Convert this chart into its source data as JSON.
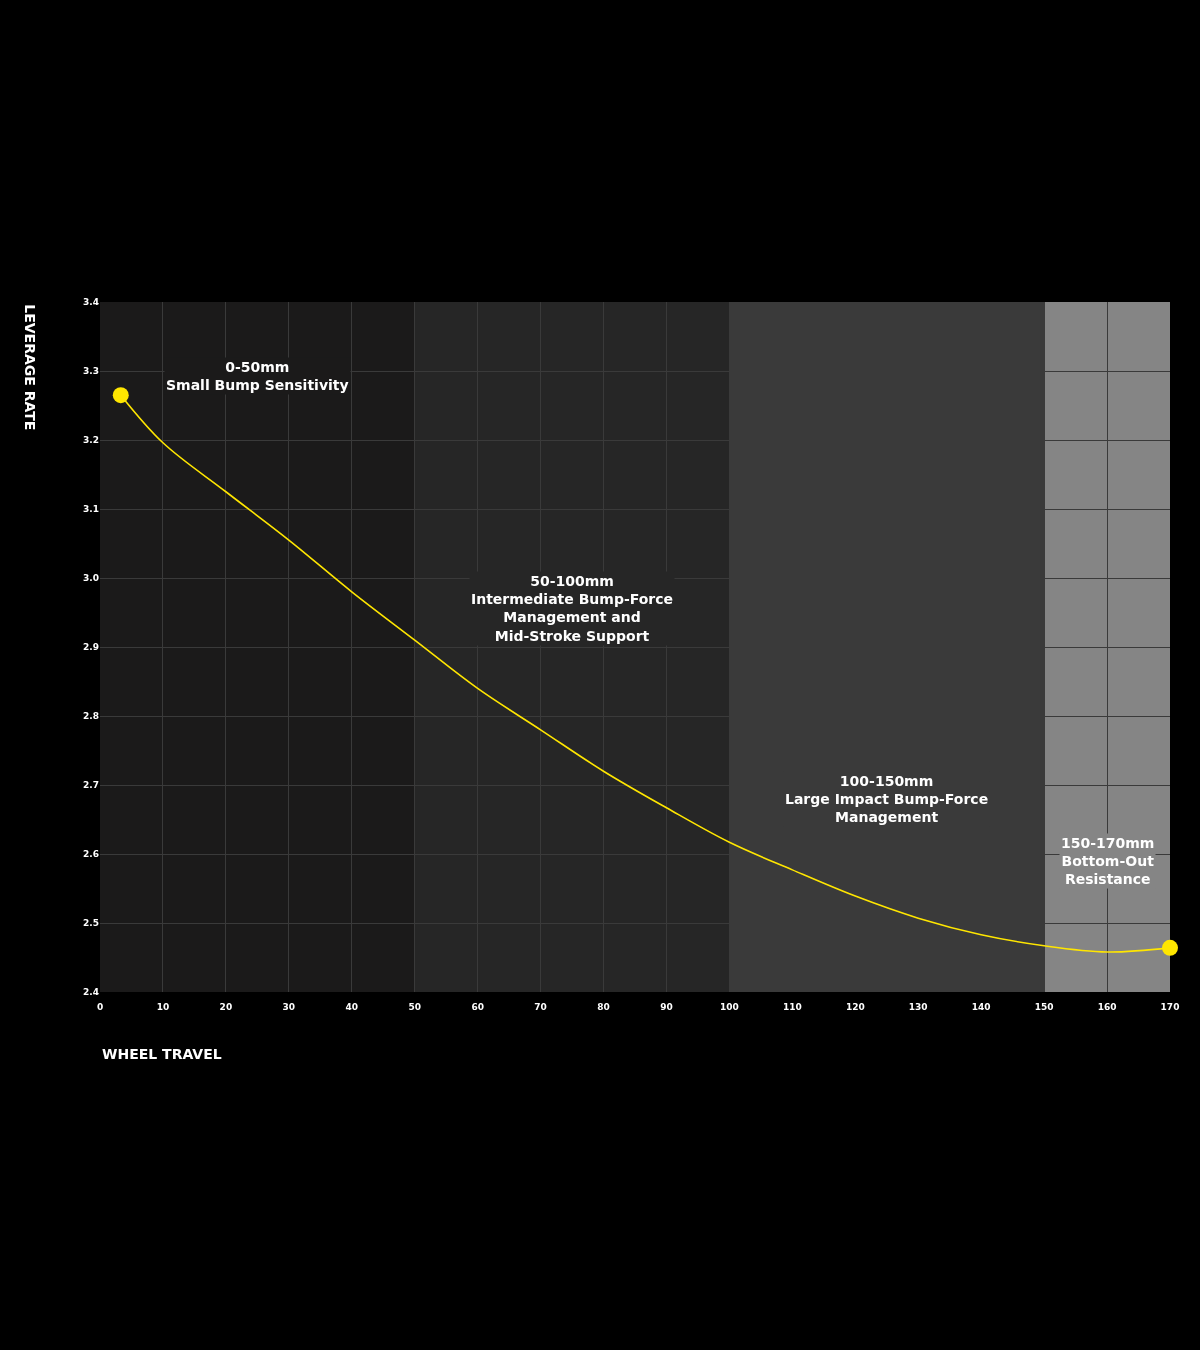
{
  "chart_data": {
    "type": "line",
    "xlabel": "WHEEL TRAVEL",
    "ylabel": "LEVERAGE RATE",
    "xlim": [
      0,
      170
    ],
    "xticks": [
      0,
      10,
      20,
      30,
      40,
      50,
      60,
      70,
      80,
      90,
      100,
      110,
      120,
      130,
      140,
      150,
      160,
      170
    ],
    "ylim": [
      2.4,
      3.4
    ],
    "yticks": [
      2.4,
      2.5,
      2.6,
      2.7,
      2.8,
      2.9,
      {
        "value": 3.0,
        "label": "3.0"
      },
      3.1,
      3.2,
      3.3,
      3.4
    ],
    "grid": true,
    "legend": false,
    "line_style": "solid",
    "series": [
      {
        "color": "#ffe600",
        "x": [
          3.3,
          10,
          20,
          30,
          40,
          50,
          60,
          70,
          80,
          90,
          100,
          110,
          120,
          130,
          140,
          150,
          160,
          170
        ],
        "values": [
          3.265,
          3.196,
          3.125,
          3.055,
          2.98,
          2.91,
          2.84,
          2.78,
          2.72,
          2.667,
          2.617,
          2.577,
          2.539,
          2.507,
          2.483,
          2.467,
          2.458,
          2.464
        ]
      },
      {
        "type": "scatter",
        "marker": "circle",
        "color": "#ffe600",
        "x": [
          3.3,
          170
        ],
        "values": [
          3.265,
          2.464
        ]
      }
    ],
    "bands": [
      {
        "axis": "x",
        "from": 0,
        "to": 50,
        "label": "0-50mm\nSmall Bump Sensitivity",
        "color": "#1b1a1a"
      },
      {
        "axis": "x",
        "from": 50,
        "to": 100,
        "label": "50-100mm\nIntermediate Bump-Force\nManagement and\nMid-Stroke Support",
        "color": "#262626"
      },
      {
        "axis": "x",
        "from": 100,
        "to": 150,
        "label": "100-150mm\nLarge Impact Bump-Force\nManagement",
        "color": "#3a3a3a"
      },
      {
        "axis": "x",
        "from": 150,
        "to": 170,
        "label": "150-170mm\nBottom-Out\nResistance",
        "color": "#858585"
      }
    ]
  }
}
